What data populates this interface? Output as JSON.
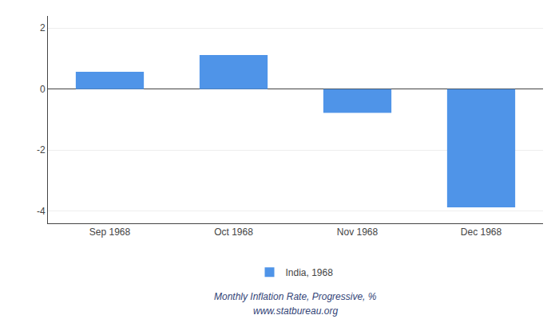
{
  "chart_data": {
    "type": "bar",
    "categories": [
      "Sep 1968",
      "Oct 1968",
      "Nov 1968",
      "Dec 1968"
    ],
    "series": [
      {
        "name": "India, 1968",
        "color": "#4f94e8",
        "values": [
          0.57,
          1.12,
          -0.78,
          -3.88
        ]
      }
    ],
    "ylim": [
      -4.4,
      2.4
    ],
    "yticks": [
      -4,
      -2,
      0,
      2
    ],
    "grid": true,
    "legend": "bottom",
    "annotations": [
      "Monthly Inflation Rate, Progressive, %",
      "www.statbureau.org"
    ]
  }
}
